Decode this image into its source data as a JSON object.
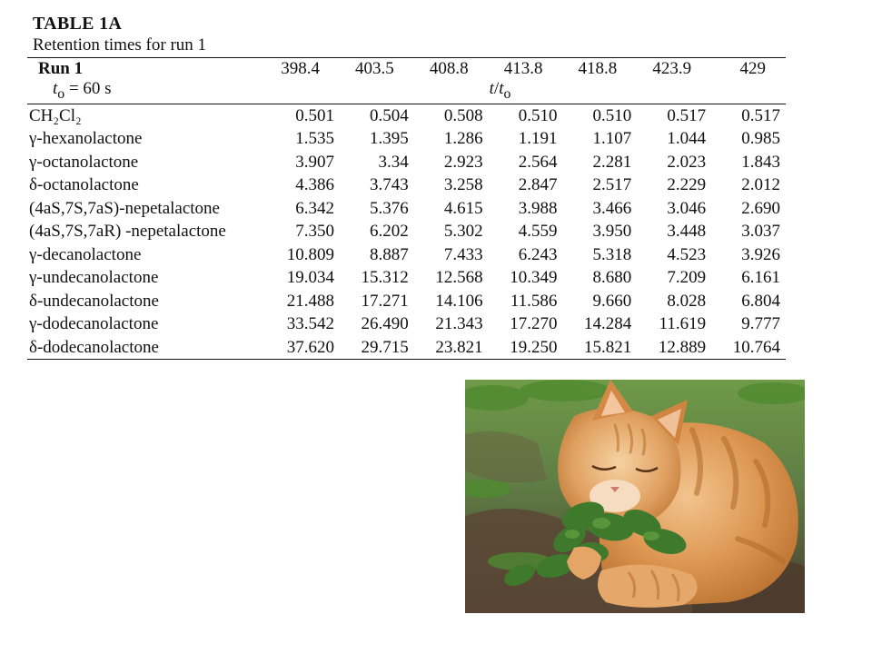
{
  "table": {
    "title": "TABLE 1A",
    "caption": "Retention times for run 1",
    "run_label": "Run  1",
    "run_values": [
      "398.4",
      "403.5",
      "408.8",
      "413.8",
      "418.8",
      "423.9",
      "429"
    ],
    "t0_symbol": "t",
    "t0_subscript": "o",
    "t0_value": " = 60 s",
    "ratio_t": "t",
    "ratio_slash": "/",
    "ratio_t2": "t",
    "ratio_subscript": "o",
    "rows": [
      {
        "name": "CH₂Cl₂",
        "values": [
          "0.501",
          "0.504",
          "0.508",
          "0.510",
          "0.510",
          "0.517",
          "0.517"
        ]
      },
      {
        "name": "γ-hexanolactone",
        "values": [
          "1.535",
          "1.395",
          "1.286",
          "1.191",
          "1.107",
          "1.044",
          "0.985"
        ]
      },
      {
        "name": "γ-octanolactone",
        "values": [
          "3.907",
          "3.34",
          "2.923",
          "2.564",
          "2.281",
          "2.023",
          "1.843"
        ]
      },
      {
        "name": "δ-octanolactone",
        "values": [
          "4.386",
          "3.743",
          "3.258",
          "2.847",
          "2.517",
          "2.229",
          "2.012"
        ]
      },
      {
        "name": "(4aS,7S,7aS)-nepetalactone",
        "values": [
          "6.342",
          "5.376",
          "4.615",
          "3.988",
          "3.466",
          "3.046",
          "2.690"
        ]
      },
      {
        "name": "(4aS,7S,7aR) -nepetalactone",
        "values": [
          "7.350",
          "6.202",
          "5.302",
          "4.559",
          "3.950",
          "3.448",
          "3.037"
        ]
      },
      {
        "name": "γ-decanolactone",
        "values": [
          "10.809",
          "8.887",
          "7.433",
          "6.243",
          "5.318",
          "4.523",
          "3.926"
        ]
      },
      {
        "name": "γ-undecanolactone",
        "values": [
          "19.034",
          "15.312",
          "12.568",
          "10.349",
          "8.680",
          "7.209",
          "6.161"
        ]
      },
      {
        "name": "δ-undecanolactone",
        "values": [
          "21.488",
          "17.271",
          "14.106",
          "11.586",
          "9.660",
          "8.028",
          "6.804"
        ]
      },
      {
        "name": "γ-dodecanolactone",
        "values": [
          "33.542",
          "26.490",
          "21.343",
          "17.270",
          "14.284",
          "11.619",
          "9.777"
        ]
      },
      {
        "name": "δ-dodecanolactone",
        "values": [
          "37.620",
          "29.715",
          "23.821",
          "19.250",
          "15.821",
          "12.889",
          "10.764"
        ]
      }
    ]
  },
  "photo": {
    "subject": "orange-tabby-cat-with-catnip",
    "colors": {
      "fur": "#d9924a",
      "fur_light": "#efc08a",
      "fur_dark": "#b06a2a",
      "grass": "#5e8a3a",
      "soil": "#5a4636",
      "leaf": "#3f7a2c"
    }
  }
}
